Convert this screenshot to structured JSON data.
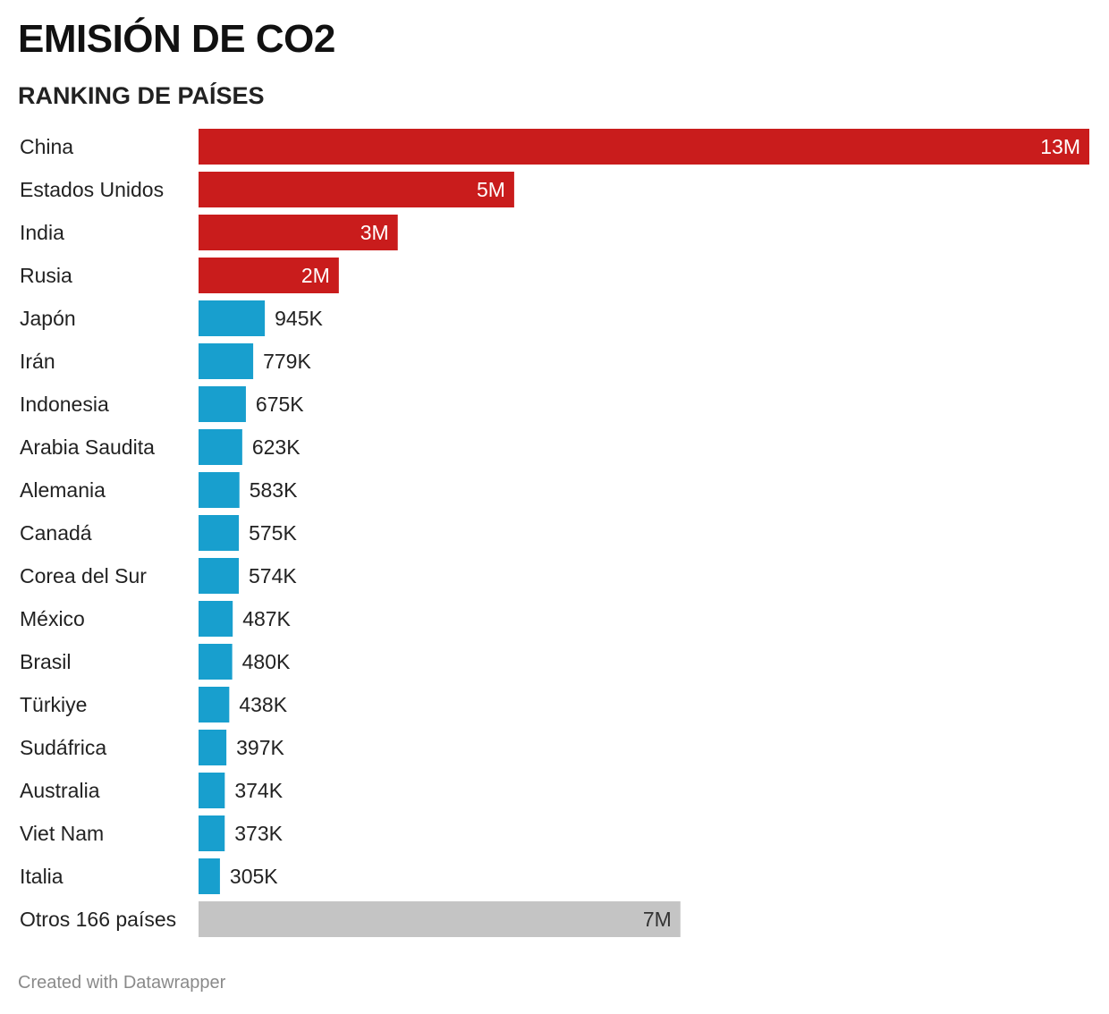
{
  "header": {
    "title": "EMISIÓN DE CO2",
    "subtitle": "RANKING DE PAÍSES"
  },
  "footer": {
    "credit": "Created with Datawrapper"
  },
  "colors": {
    "top": "#c91c1c",
    "others": "#189fce",
    "rest": "#c4c4c4"
  },
  "chart_data": {
    "type": "bar",
    "orientation": "horizontal",
    "title": "EMISIÓN DE CO2",
    "subtitle": "RANKING DE PAÍSES",
    "categories": [
      "China",
      "Estados Unidos",
      "India",
      "Rusia",
      "Japón",
      "Irán",
      "Indonesia",
      "Arabia Saudita",
      "Alemania",
      "Canadá",
      "Corea del Sur",
      "México",
      "Brasil",
      "Türkiye",
      "Sudáfrica",
      "Australia",
      "Viet Nam",
      "Italia",
      "Otros 166 países"
    ],
    "values": [
      12700000,
      4500000,
      2840000,
      2000000,
      945000,
      779000,
      675000,
      623000,
      583000,
      575000,
      574000,
      487000,
      480000,
      438000,
      397000,
      374000,
      373000,
      305000,
      6870000
    ],
    "value_labels": [
      "13M",
      "5M",
      "3M",
      "2M",
      "945K",
      "779K",
      "675K",
      "623K",
      "583K",
      "575K",
      "574K",
      "487K",
      "480K",
      "438K",
      "397K",
      "374K",
      "373K",
      "305K",
      "7M"
    ],
    "groups": [
      "top",
      "top",
      "top",
      "top",
      "others",
      "others",
      "others",
      "others",
      "others",
      "others",
      "others",
      "others",
      "others",
      "others",
      "others",
      "others",
      "others",
      "others",
      "rest"
    ],
    "xlim": [
      0,
      12700000
    ],
    "grid": false,
    "legend": "none"
  }
}
